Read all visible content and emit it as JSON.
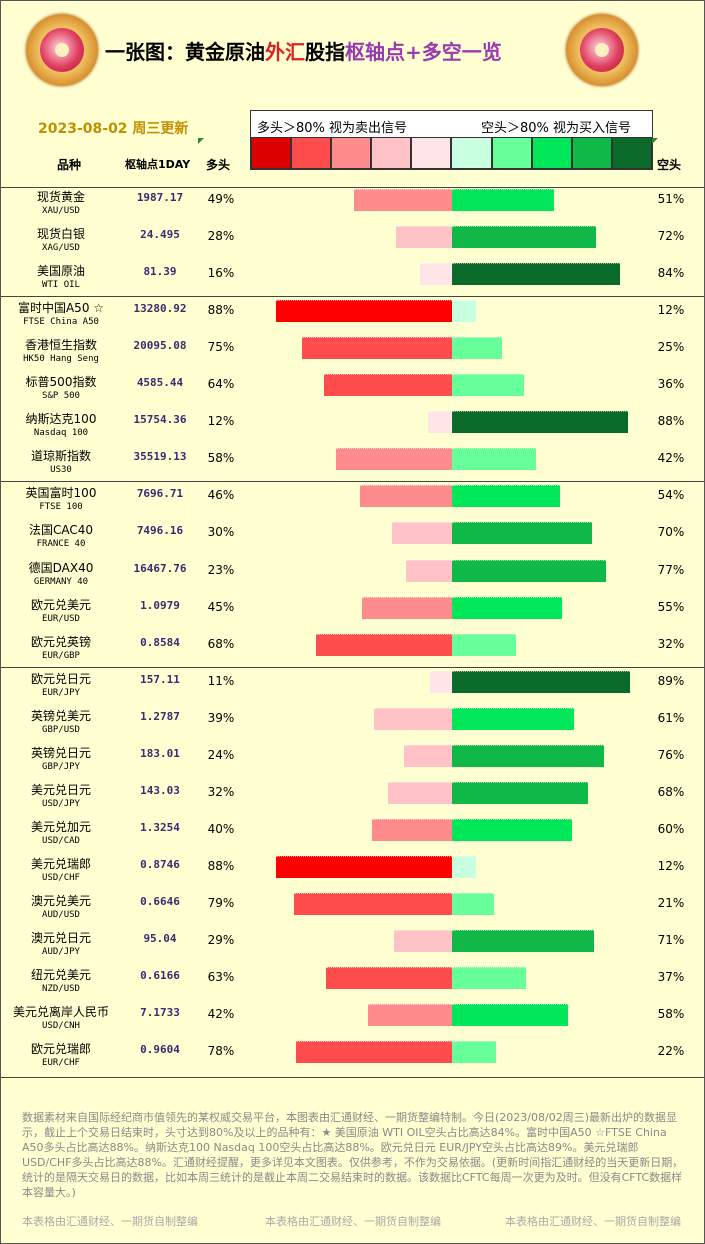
{
  "header": {
    "title_pre": "一张图：黄金原油",
    "title_mid": "外汇",
    "title_mid2": "股指",
    "title_pivot": "枢轴点",
    "title_post": "+多空一览",
    "date_label": "2023-08-02 周三更新",
    "legend_left": "多头＞80% 视为卖出信号",
    "legend_right": "空头＞80% 视为买入信号",
    "col_name": "品种",
    "col_pivot": "枢轴点1DAY",
    "col_long": "多头",
    "col_short": "空头"
  },
  "legend_colors": [
    "#dd0000",
    "#ff4d4d",
    "#ff8c8c",
    "#ffc2c7",
    "#ffe4e8",
    "#c8ffe0",
    "#66ff99",
    "#00e85a",
    "#10b848",
    "#0a6a2a"
  ],
  "chart_data": {
    "type": "bar",
    "orientation": "diverging horizontal",
    "columns": [
      "品种",
      "枢轴点1DAY",
      "多头",
      "空头"
    ],
    "rows": [
      {
        "name": "现货黄金",
        "code": "XAU/USD",
        "pivot": "1987.17",
        "long": 49,
        "short": 51
      },
      {
        "name": "现货白银",
        "code": "XAG/USD",
        "pivot": "24.495",
        "long": 28,
        "short": 72
      },
      {
        "name": "美国原油",
        "code": "WTI OIL",
        "pivot": "81.39",
        "long": 16,
        "short": 84
      },
      {
        "name": "富时中国A50 ☆",
        "code": "FTSE China A50",
        "pivot": "13280.92",
        "long": 88,
        "short": 12
      },
      {
        "name": "香港恒生指数",
        "code": "HK50 Hang Seng",
        "pivot": "20095.08",
        "long": 75,
        "short": 25
      },
      {
        "name": "标普500指数",
        "code": "S&P 500",
        "pivot": "4585.44",
        "long": 64,
        "short": 36
      },
      {
        "name": "纳斯达克100",
        "code": "Nasdaq 100",
        "pivot": "15754.36",
        "long": 12,
        "short": 88
      },
      {
        "name": "道琼斯指数",
        "code": "US30",
        "pivot": "35519.13",
        "long": 58,
        "short": 42
      },
      {
        "name": "英国富时100",
        "code": "FTSE 100",
        "pivot": "7696.71",
        "long": 46,
        "short": 54
      },
      {
        "name": "法国CAC40",
        "code": "FRANCE 40",
        "pivot": "7496.16",
        "long": 30,
        "short": 70
      },
      {
        "name": "德国DAX40",
        "code": "GERMANY 40",
        "pivot": "16467.76",
        "long": 23,
        "short": 77
      },
      {
        "name": "欧元兑美元",
        "code": "EUR/USD",
        "pivot": "1.0979",
        "long": 45,
        "short": 55
      },
      {
        "name": "欧元兑英镑",
        "code": "EUR/GBP",
        "pivot": "0.8584",
        "long": 68,
        "short": 32
      },
      {
        "name": "欧元兑日元",
        "code": "EUR/JPY",
        "pivot": "157.11",
        "long": 11,
        "short": 89
      },
      {
        "name": "英镑兑美元",
        "code": "GBP/USD",
        "pivot": "1.2787",
        "long": 39,
        "short": 61
      },
      {
        "name": "英镑兑日元",
        "code": "GBP/JPY",
        "pivot": "183.01",
        "long": 24,
        "short": 76
      },
      {
        "name": "美元兑日元",
        "code": "USD/JPY",
        "pivot": "143.03",
        "long": 32,
        "short": 68
      },
      {
        "name": "美元兑加元",
        "code": "USD/CAD",
        "pivot": "1.3254",
        "long": 40,
        "short": 60
      },
      {
        "name": "美元兑瑞郎",
        "code": "USD/CHF",
        "pivot": "0.8746",
        "long": 88,
        "short": 12
      },
      {
        "name": "澳元兑美元",
        "code": "AUD/USD",
        "pivot": "0.6646",
        "long": 79,
        "short": 21
      },
      {
        "name": "澳元兑日元",
        "code": "AUD/JPY",
        "pivot": "95.04",
        "long": 29,
        "short": 71
      },
      {
        "name": "纽元兑美元",
        "code": "NZD/USD",
        "pivot": "0.6166",
        "long": 63,
        "short": 37
      },
      {
        "name": "美元兑离岸人民币",
        "code": "USD/CNH",
        "pivot": "7.1733",
        "long": 42,
        "short": 58
      },
      {
        "name": "欧元兑瑞郎",
        "code": "EUR/CHF",
        "pivot": "0.9604",
        "long": 78,
        "short": 22
      }
    ],
    "groups": [
      3,
      8,
      13
    ]
  },
  "footer": {
    "note": "数据素材来自国际经纪商市值领先的某权威交易平台，本图表由汇通财经、一期货整编特制。今日(2023/08/02周三)最新出炉的数据显示，截止上个交易日结束时，头寸达到80%及以上的品种有：★ 美国原油 WTI OIL空头占比高达84%。富时中国A50 ☆FTSE China A50多头占比高达88%。纳斯达克100 Nasdaq 100空头占比高达88%。欧元兑日元 EUR/JPY空头占比高达89%。美元兑瑞郎 USD/CHF多头占比高达88%。汇通财经提醒，更多详见本文图表。仅供参考，不作为交易依据。(更新时间指汇通财经的当天更新日期，统计的是隔天交易日的数据，比如本周三统计的是截止本周二交易结束时的数据。该数据比CFTC每周一次更为及时。但没有CFTC数据样本容量大。)",
    "credit": "本表格由汇通财经、一期货自制整编"
  }
}
